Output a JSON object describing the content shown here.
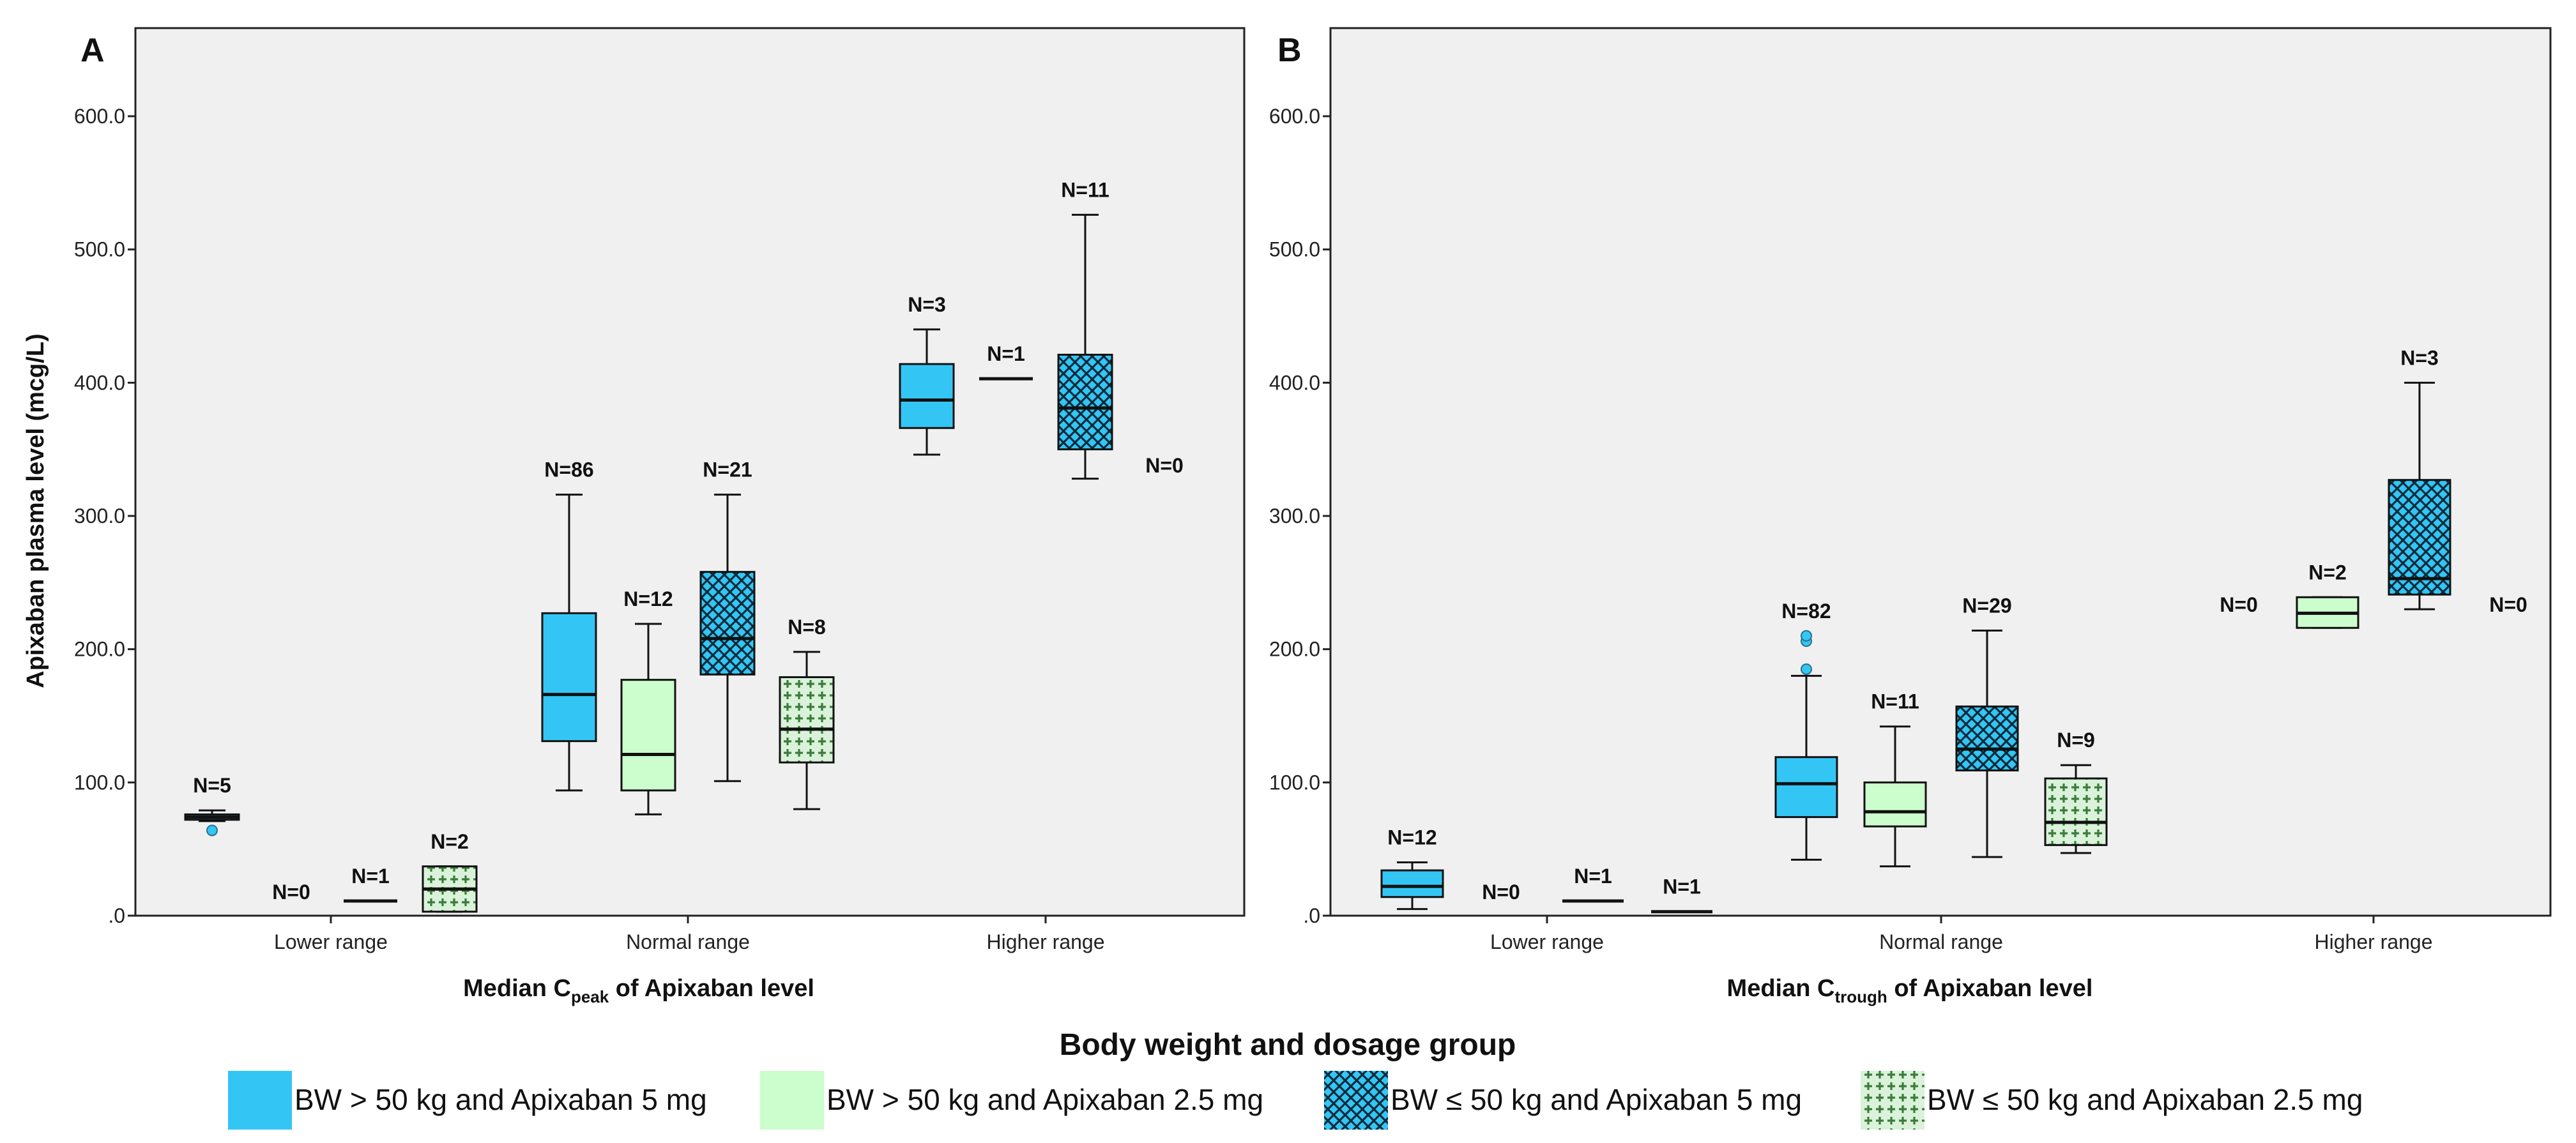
{
  "colors": {
    "bw_gt50_5mg": "#33c6f5",
    "bw_gt50_2_5mg": "#ccfdcc",
    "bw_le50_5mg": "#33c6f5",
    "bw_le50_2_5mg": "#d9f2d9",
    "plot_bg": "#f0f0f0",
    "outlier": "#33c6f5"
  },
  "legend": {
    "title": "Body weight and dosage group",
    "items": [
      {
        "key": "bw_gt50_5mg",
        "label": "BW > 50 kg and Apixaban 5 mg",
        "pattern": "solid"
      },
      {
        "key": "bw_gt50_2_5mg",
        "label": "BW > 50 kg and Apixaban 2.5 mg",
        "pattern": "solid"
      },
      {
        "key": "bw_le50_5mg",
        "label": "BW ≤ 50 kg and Apixaban 5 mg",
        "pattern": "crosshatch"
      },
      {
        "key": "bw_le50_2_5mg",
        "label": "BW ≤ 50 kg and Apixaban 2.5 mg",
        "pattern": "plus"
      }
    ]
  },
  "chart_data": [
    {
      "type": "boxplot",
      "panel_label": "A",
      "title": "",
      "ylabel": "Apixaban plasma level (mcg/L)",
      "xlabel": "Median C",
      "xlabel_sub": "peak",
      "xlabel_rest": " of Apixaban level",
      "ylim": [
        0,
        600
      ],
      "yticks": [
        0,
        100,
        200,
        300,
        400,
        500,
        600
      ],
      "ytick_labels": [
        ".0",
        "100.0",
        "200.0",
        "300.0",
        "400.0",
        "500.0",
        "600.0"
      ],
      "categories": [
        "Lower range",
        "Normal range",
        "Higher range"
      ],
      "series": [
        {
          "key": "bw_gt50_5mg",
          "groups": [
            {
              "n": "N=5",
              "min": 71,
              "q1": 72,
              "median": 74,
              "q3": 76,
              "max": 79,
              "outliers": [
                64
              ]
            },
            {
              "n": "N=86",
              "min": 94,
              "q1": 131,
              "median": 166,
              "q3": 227,
              "max": 316,
              "outliers": []
            },
            {
              "n": "N=3",
              "min": 346,
              "q1": 366,
              "median": 387,
              "q3": 414,
              "max": 440,
              "outliers": []
            }
          ]
        },
        {
          "key": "bw_gt50_2_5mg",
          "groups": [
            {
              "n": "N=0"
            },
            {
              "n": "N=12",
              "min": 76,
              "q1": 94,
              "median": 121,
              "q3": 177,
              "max": 219,
              "outliers": []
            },
            {
              "n": "N=1",
              "single": 403
            }
          ]
        },
        {
          "key": "bw_le50_5mg",
          "groups": [
            {
              "n": "N=1",
              "single": 11
            },
            {
              "n": "N=21",
              "min": 101,
              "q1": 181,
              "median": 208,
              "q3": 258,
              "max": 316,
              "outliers": []
            },
            {
              "n": "N=11",
              "min": 328,
              "q1": 350,
              "median": 381,
              "q3": 421,
              "max": 526,
              "outliers": []
            }
          ]
        },
        {
          "key": "bw_le50_2_5mg",
          "groups": [
            {
              "n": "N=2",
              "min": 3,
              "q1": 3,
              "median": 20,
              "q3": 37,
              "max": 37,
              "outliers": []
            },
            {
              "n": "N=8",
              "min": 80,
              "q1": 115,
              "median": 140,
              "q3": 179,
              "max": 198,
              "outliers": []
            },
            {
              "n": "N=0"
            }
          ]
        }
      ]
    },
    {
      "type": "boxplot",
      "panel_label": "B",
      "title": "",
      "ylabel": "",
      "xlabel": "Median C",
      "xlabel_sub": "trough",
      "xlabel_rest": " of Apixaban level",
      "ylim": [
        0,
        600
      ],
      "yticks": [
        0,
        100,
        200,
        300,
        400,
        500,
        600
      ],
      "ytick_labels": [
        ".0",
        "100.0",
        "200.0",
        "300.0",
        "400.0",
        "500.0",
        "600.0"
      ],
      "categories": [
        "Lower range",
        "Normal range",
        "Higher range"
      ],
      "series": [
        {
          "key": "bw_gt50_5mg",
          "groups": [
            {
              "n": "N=12",
              "min": 5,
              "q1": 14,
              "median": 22,
              "q3": 34,
              "max": 40,
              "outliers": []
            },
            {
              "n": "N=82",
              "min": 42,
              "q1": 74,
              "median": 99,
              "q3": 119,
              "max": 180,
              "outliers": [
                185,
                206,
                210
              ]
            },
            {
              "n": "N=0"
            }
          ]
        },
        {
          "key": "bw_gt50_2_5mg",
          "groups": [
            {
              "n": "N=0"
            },
            {
              "n": "N=11",
              "min": 37,
              "q1": 67,
              "median": 78,
              "q3": 100,
              "max": 142,
              "outliers": []
            },
            {
              "n": "N=2",
              "min": 216,
              "q1": 216,
              "median": 227,
              "q3": 239,
              "max": 239,
              "outliers": []
            }
          ]
        },
        {
          "key": "bw_le50_5mg",
          "groups": [
            {
              "n": "N=1",
              "single": 11
            },
            {
              "n": "N=29",
              "min": 44,
              "q1": 109,
              "median": 125,
              "q3": 157,
              "max": 214,
              "outliers": []
            },
            {
              "n": "N=3",
              "min": 230,
              "q1": 241,
              "median": 253,
              "q3": 327,
              "max": 400,
              "outliers": []
            }
          ]
        },
        {
          "key": "bw_le50_2_5mg",
          "groups": [
            {
              "n": "N=1",
              "single": 3
            },
            {
              "n": "N=9",
              "min": 47,
              "q1": 53,
              "median": 70,
              "q3": 103,
              "max": 113,
              "outliers": []
            },
            {
              "n": "N=0"
            }
          ]
        }
      ]
    }
  ]
}
